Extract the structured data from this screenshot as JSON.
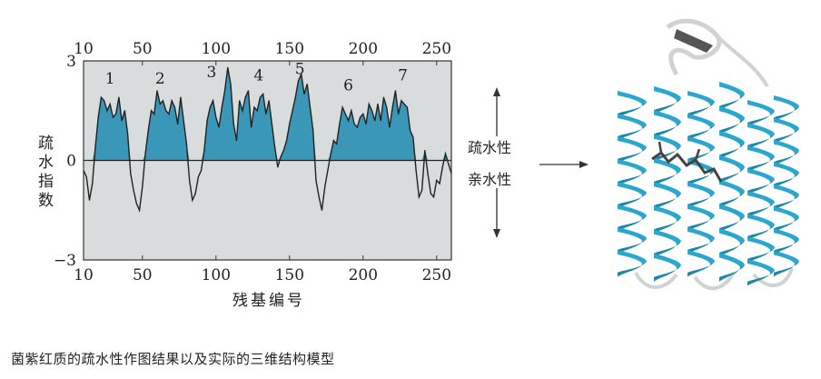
{
  "chart_data": {
    "type": "area",
    "x_axis_top_ticks": [
      "10",
      "50",
      "100",
      "150",
      "200",
      "250"
    ],
    "x_axis_bottom_ticks": [
      "10",
      "50",
      "100",
      "150",
      "200",
      "250"
    ],
    "y_ticks": [
      "3",
      "0",
      "−3"
    ],
    "xlabel": "残基编号",
    "ylabel": "疏水指数",
    "xlim": [
      10,
      260
    ],
    "ylim": [
      -3,
      3
    ],
    "helix_labels": [
      {
        "label": "1",
        "x": 28,
        "y": 2.2
      },
      {
        "label": "2",
        "x": 62,
        "y": 2.2
      },
      {
        "label": "3",
        "x": 97,
        "y": 2.4
      },
      {
        "label": "4",
        "x": 129,
        "y": 2.3
      },
      {
        "label": "5",
        "x": 157,
        "y": 2.5
      },
      {
        "label": "6",
        "x": 190,
        "y": 2.0
      },
      {
        "label": "7",
        "x": 227,
        "y": 2.3
      }
    ],
    "series": [
      {
        "x": [
          10,
          12,
          14,
          16,
          18,
          20,
          22,
          24,
          26,
          28,
          30,
          32,
          34,
          36,
          38,
          40,
          42,
          44,
          46,
          48,
          50,
          52,
          54,
          56,
          58,
          60,
          62,
          64,
          66,
          68,
          70,
          72,
          74,
          76,
          78,
          80,
          82,
          84,
          86,
          88,
          90,
          92,
          94,
          96,
          98,
          100,
          102,
          104,
          106,
          108,
          110,
          112,
          114,
          116,
          118,
          120,
          122,
          124,
          126,
          128,
          130,
          132,
          134,
          136,
          138,
          140,
          142,
          144,
          146,
          148,
          150,
          152,
          154,
          156,
          158,
          160,
          162,
          164,
          166,
          168,
          170,
          172,
          174,
          176,
          178,
          180,
          182,
          184,
          186,
          188,
          190,
          192,
          194,
          196,
          198,
          200,
          202,
          204,
          206,
          208,
          210,
          212,
          214,
          216,
          218,
          220,
          222,
          224,
          226,
          228,
          230,
          232,
          234,
          236,
          238,
          240,
          242,
          244,
          246,
          248,
          250,
          252,
          254,
          256,
          258,
          260
        ],
        "y": [
          -0.3,
          -0.5,
          -1.2,
          -0.7,
          0.4,
          1.3,
          1.9,
          1.8,
          1.5,
          1.7,
          1.3,
          1.4,
          1.9,
          1.2,
          1.5,
          0.8,
          -0.4,
          -0.9,
          -1.3,
          -1.5,
          -0.8,
          0.2,
          0.9,
          1.5,
          1.4,
          2.1,
          1.7,
          1.8,
          1.5,
          1.4,
          1.8,
          1.6,
          1.1,
          1.9,
          1.2,
          0.5,
          -0.6,
          -1.2,
          -1.0,
          -0.5,
          -0.3,
          0.3,
          1.2,
          1.6,
          1.8,
          1.3,
          1.0,
          1.6,
          2.1,
          2.8,
          2.3,
          1.1,
          0.6,
          1.8,
          1.5,
          1.9,
          2.1,
          1.0,
          1.6,
          1.5,
          1.9,
          2.0,
          1.4,
          1.8,
          1.1,
          0.4,
          -0.2,
          0.1,
          0.3,
          0.6,
          1.1,
          1.5,
          1.9,
          2.4,
          2.6,
          2.0,
          2.3,
          1.6,
          0.9,
          -0.6,
          -1.1,
          -1.5,
          -0.8,
          -0.3,
          0.2,
          0.6,
          0.5,
          1.1,
          1.6,
          1.4,
          1.2,
          1.5,
          1.1,
          1.0,
          1.3,
          1.4,
          1.1,
          1.7,
          1.5,
          1.2,
          1.7,
          1.2,
          1.9,
          1.6,
          1.0,
          1.6,
          2.1,
          1.4,
          1.8,
          1.7,
          1.6,
          0.9,
          0.7,
          -0.3,
          -1.1,
          -0.9,
          0.3,
          -0.4,
          -1.0,
          -1.1,
          -0.6,
          -0.7,
          -0.2,
          0.2,
          -0.1,
          -0.4
        ]
      }
    ]
  },
  "annotation": {
    "up_label": "疏水性",
    "down_label": "亲水性"
  },
  "caption": "菌紫红质的疏水性作图结果以及实际的三维结构模型",
  "colors": {
    "fill_above": "#3a97b8",
    "fill_below": "#d9dcdc",
    "helix": "#2aa7cf",
    "helix_dark": "#1e86a9",
    "line": "#222222"
  }
}
